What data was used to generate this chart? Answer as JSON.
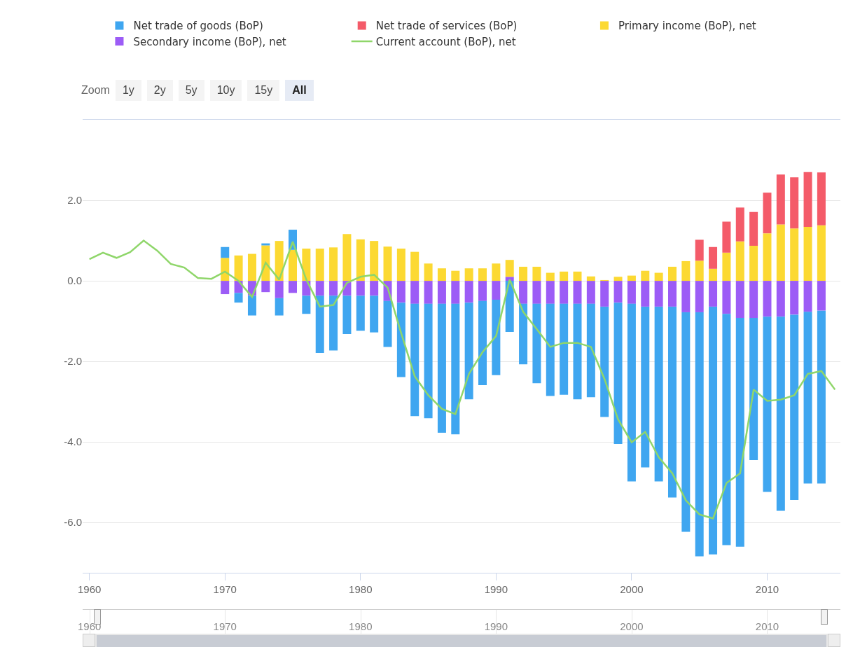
{
  "chart_data": {
    "type": "bar",
    "stacked": true,
    "annotations": [
      "Zoom",
      "1y",
      "2y",
      "5y",
      "10y",
      "15y",
      "All"
    ],
    "xlim": [
      1959.5,
      2015.4
    ],
    "xticks": [
      1960,
      1970,
      1980,
      1990,
      2000,
      2010
    ],
    "x2lim": [
      1959.5,
      2015.4
    ],
    "x2ticks": [
      1960,
      1970,
      1980,
      1990,
      2000,
      2010
    ],
    "ylim": [
      -7.25,
      4.0
    ],
    "yticks": [
      {
        "value": -6,
        "label": "-6.0"
      },
      {
        "value": -4,
        "label": "-4.0"
      },
      {
        "value": -2,
        "label": "-2.0"
      },
      {
        "value": 0,
        "label": "0.0"
      },
      {
        "value": 2,
        "label": "2.0"
      }
    ],
    "grid": "y",
    "legend": "top",
    "x": [
      1970,
      1971,
      1972,
      1973,
      1974,
      1975,
      1976,
      1977,
      1978,
      1979,
      1980,
      1981,
      1982,
      1983,
      1984,
      1985,
      1986,
      1987,
      1988,
      1989,
      1990,
      1991,
      1992,
      1993,
      1994,
      1995,
      1996,
      1997,
      1998,
      1999,
      2000,
      2001,
      2002,
      2003,
      2004,
      2005,
      2006,
      2007,
      2008,
      2009,
      2010,
      2011,
      2012,
      2013,
      2014
    ],
    "series": [
      {
        "name": "Secondary income (BoP), net",
        "color": "#9c5cf6",
        "values": [
          -0.33,
          -0.3,
          -0.37,
          -0.28,
          -0.43,
          -0.3,
          -0.37,
          -0.37,
          -0.37,
          -0.37,
          -0.37,
          -0.37,
          -0.5,
          -0.54,
          -0.57,
          -0.57,
          -0.57,
          -0.57,
          -0.54,
          -0.5,
          -0.47,
          0.1,
          -0.57,
          -0.57,
          -0.57,
          -0.57,
          -0.57,
          -0.57,
          -0.64,
          -0.54,
          -0.57,
          -0.64,
          -0.64,
          -0.64,
          -0.78,
          -0.78,
          -0.64,
          -0.82,
          -0.92,
          -0.92,
          -0.89,
          -0.89,
          -0.84,
          -0.77,
          -0.74
        ]
      },
      {
        "name": "Primary income (BoP), net",
        "color": "#fcd932",
        "values": [
          0.57,
          0.63,
          0.67,
          0.88,
          0.99,
          0.77,
          0.8,
          0.8,
          0.83,
          1.16,
          1.03,
          0.99,
          0.85,
          0.8,
          0.72,
          0.43,
          0.31,
          0.25,
          0.31,
          0.31,
          0.43,
          0.42,
          0.35,
          0.35,
          0.2,
          0.23,
          0.23,
          0.11,
          0.02,
          0.1,
          0.13,
          0.25,
          0.2,
          0.35,
          0.49,
          0.5,
          0.3,
          0.7,
          0.98,
          0.87,
          1.18,
          1.4,
          1.3,
          1.34,
          1.38
        ]
      },
      {
        "name": "Net trade of services (BoP)",
        "color": "#f45b69",
        "values": [
          null,
          null,
          null,
          null,
          null,
          null,
          null,
          null,
          null,
          null,
          null,
          null,
          null,
          null,
          null,
          null,
          null,
          null,
          null,
          null,
          null,
          null,
          null,
          null,
          null,
          null,
          null,
          null,
          null,
          null,
          null,
          null,
          null,
          null,
          null,
          0.52,
          0.54,
          0.77,
          0.84,
          0.84,
          1.01,
          1.24,
          1.27,
          1.36,
          1.31
        ]
      },
      {
        "name": "Net trade of goods (BoP)",
        "color": "#3fa6f0",
        "values": [
          0.27,
          -0.24,
          -0.49,
          0.05,
          -0.43,
          0.5,
          -0.45,
          -1.42,
          -1.36,
          -0.95,
          -0.87,
          -0.91,
          -1.14,
          -1.85,
          -2.79,
          -2.84,
          -3.2,
          -3.24,
          -2.4,
          -2.09,
          -1.87,
          -1.27,
          -1.5,
          -1.97,
          -2.29,
          -2.26,
          -2.37,
          -2.32,
          -2.74,
          -3.51,
          -4.41,
          -3.99,
          -4.34,
          -4.74,
          -5.45,
          -6.06,
          -6.15,
          -5.74,
          -5.68,
          -3.53,
          -4.35,
          -4.82,
          -4.6,
          -4.26,
          -4.29
        ]
      },
      {
        "name": "Current account (BoP), net",
        "type": "line",
        "color": "#8fd66a",
        "line_style": "solid",
        "marker": "none",
        "x": [
          1960,
          1961,
          1962,
          1963,
          1964,
          1965,
          1966,
          1967,
          1968,
          1969,
          1970,
          1971,
          1972,
          1973,
          1974,
          1975,
          1976,
          1977,
          1978,
          1979,
          1980,
          1981,
          1982,
          1983,
          1984,
          1985,
          1986,
          1987,
          1988,
          1989,
          1990,
          1991,
          1992,
          1993,
          1994,
          1995,
          1996,
          1997,
          1998,
          1999,
          2000,
          2001,
          2002,
          2003,
          2004,
          2005,
          2006,
          2007,
          2008,
          2009,
          2010,
          2011,
          2012,
          2013,
          2014,
          2015
        ],
        "values": [
          0.54,
          0.7,
          0.57,
          0.71,
          1.0,
          0.75,
          0.42,
          0.33,
          0.07,
          0.05,
          0.23,
          0,
          -0.4,
          0.45,
          0.03,
          0.97,
          0.03,
          -0.64,
          -0.6,
          -0.05,
          0.1,
          0.15,
          -0.17,
          -1.3,
          -2.37,
          -2.84,
          -3.18,
          -3.31,
          -2.31,
          -1.77,
          -1.37,
          0.03,
          -0.77,
          -1.2,
          -1.64,
          -1.54,
          -1.54,
          -1.64,
          -2.44,
          -3.44,
          -4.01,
          -3.75,
          -4.38,
          -4.78,
          -5.45,
          -5.8,
          -5.9,
          -5.02,
          -4.78,
          -2.7,
          -2.98,
          -2.95,
          -2.84,
          -2.31,
          -2.24,
          -2.7
        ]
      }
    ]
  }
}
